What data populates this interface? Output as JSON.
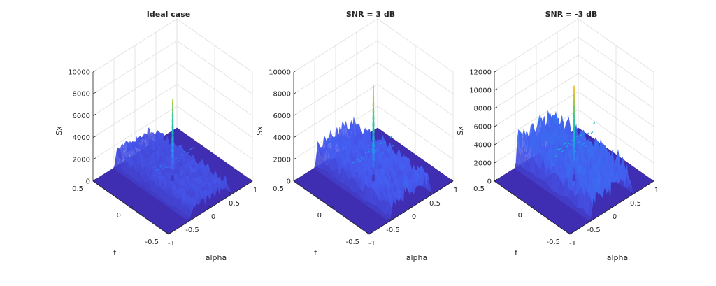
{
  "chart_data": [
    {
      "type": "surface",
      "title": "Ideal case",
      "xlabel": "alpha",
      "ylabel": "f",
      "zlabel": "Sx",
      "xlim": [
        -1,
        1
      ],
      "ylim": [
        -0.5,
        0.5
      ],
      "zlim": [
        0,
        10000
      ],
      "xticks": [
        "-1",
        "-0.5",
        "0",
        "0.5",
        "1"
      ],
      "yticks": [
        "-0.5",
        "0",
        "0.5"
      ],
      "zticks": [
        "0",
        "2000",
        "4000",
        "6000",
        "8000",
        "10000"
      ],
      "grid": true,
      "colormap": "parula",
      "plateau_level": 1500,
      "peak": {
        "alpha": 0,
        "f": 0,
        "Sx": 7500
      }
    },
    {
      "type": "surface",
      "title": "SNR = 3 dB",
      "xlabel": "alpha",
      "ylabel": "f",
      "zlabel": "Sx",
      "xlim": [
        -1,
        1
      ],
      "ylim": [
        -0.5,
        0.5
      ],
      "zlim": [
        0,
        10000
      ],
      "xticks": [
        "-1",
        "-0.5",
        "0",
        "0.5",
        "1"
      ],
      "yticks": [
        "-0.5",
        "0",
        "0.5"
      ],
      "zticks": [
        "0",
        "2000",
        "4000",
        "6000",
        "8000",
        "10000"
      ],
      "grid": true,
      "colormap": "parula",
      "plateau_level": 2200,
      "peak": {
        "alpha": 0,
        "f": 0,
        "Sx": 8800
      }
    },
    {
      "type": "surface",
      "title": "SNR = -3 dB",
      "xlabel": "alpha",
      "ylabel": "f",
      "zlabel": "Sx",
      "xlim": [
        -1,
        1
      ],
      "ylim": [
        -0.5,
        0.5
      ],
      "zlim": [
        0,
        12000
      ],
      "xticks": [
        "-1",
        "-0.5",
        "0",
        "0.5",
        "1"
      ],
      "yticks": [
        "-0.5",
        "0",
        "0.5"
      ],
      "zticks": [
        "0",
        "2000",
        "4000",
        "6000",
        "8000",
        "10000",
        "12000"
      ],
      "grid": true,
      "colormap": "parula",
      "plateau_level": 3600,
      "peak": {
        "alpha": 0,
        "f": 0,
        "Sx": 10500
      }
    }
  ]
}
